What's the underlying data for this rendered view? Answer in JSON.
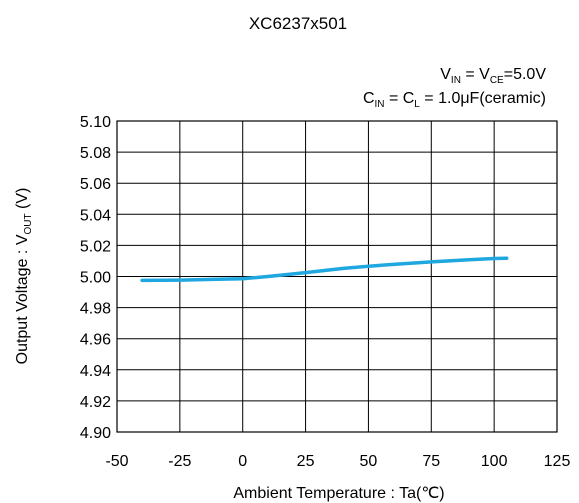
{
  "chart_data": {
    "type": "line",
    "title": "XC6237x501",
    "conditions": {
      "line1": {
        "a": "V",
        "a_sub": "IN",
        "b": " = V",
        "b_sub": "CE",
        "c": "=5.0V"
      },
      "line2": {
        "a": "C",
        "a_sub": "IN",
        "b": " = C",
        "b_sub": "L",
        "c": " = 1.0μF(ceramic)"
      }
    },
    "xlabel": "Ambient Temperature : Ta(℃)",
    "ylabel": {
      "main": "Output Voltage : V",
      "sub": "OUT",
      "unit": " (V)"
    },
    "xlim": [
      -50,
      125
    ],
    "ylim": [
      4.9,
      5.1
    ],
    "xticks": [
      "-50",
      "-25",
      "0",
      "25",
      "50",
      "75",
      "100",
      "125"
    ],
    "yticks": [
      "5.10",
      "5.08",
      "5.06",
      "5.04",
      "5.02",
      "5.00",
      "4.98",
      "4.96",
      "4.94",
      "4.92",
      "4.90"
    ],
    "grid": true,
    "series": [
      {
        "color": "#1fa7e0",
        "x": [
          -40,
          -25,
          -10,
          0,
          10,
          25,
          40,
          50,
          60,
          75,
          90,
          100,
          105
        ],
        "y": [
          4.9975,
          4.9977,
          4.9982,
          4.9986,
          5.0,
          5.0025,
          5.0052,
          5.0066,
          5.0078,
          5.0094,
          5.0108,
          5.0116,
          5.0118
        ]
      }
    ]
  }
}
